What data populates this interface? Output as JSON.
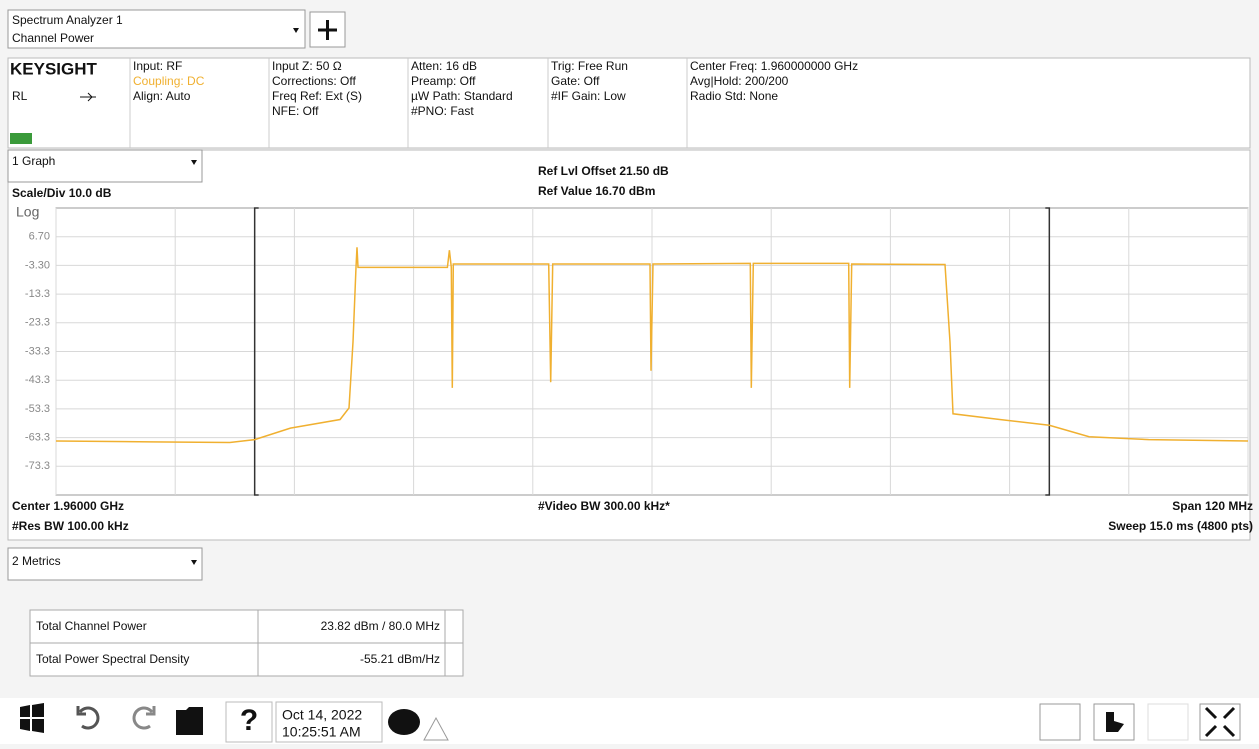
{
  "header": {
    "title": "Spectrum Analyzer 1",
    "subtitle": "Channel Power"
  },
  "status": {
    "brand": "KEYSIGHT",
    "rl": "RL",
    "columns": [
      [
        "Input: RF",
        "Coupling: DC",
        "Align: Auto"
      ],
      [
        "Input Z: 50 Ω",
        "Corrections: Off",
        "Freq Ref: Ext (S)",
        "NFE: Off"
      ],
      [
        "Atten: 16 dB",
        "Preamp: Off",
        "µW Path: Standard",
        "#PNO: Fast"
      ],
      [
        "Trig: Free Run",
        "Gate: Off",
        "#IF Gain: Low"
      ],
      [
        "Center Freq: 1.960000000 GHz",
        "Avg|Hold: 200/200",
        "Radio Std: None"
      ]
    ]
  },
  "graph": {
    "selector": "1 Graph",
    "scale": "Scale/Div 10.0 dB",
    "scale_type": "Log",
    "ref_offset": "Ref Lvl Offset 21.50 dB",
    "ref_value": "Ref Value 16.70 dBm",
    "center": "Center 1.96000 GHz",
    "res_bw": "#Res BW 100.00 kHz",
    "video_bw": "#Video BW 300.00 kHz*",
    "span": "Span 120 MHz",
    "sweep": "Sweep 15.0 ms (4800 pts)"
  },
  "chart_data": {
    "type": "line",
    "xlim": [
      1.9,
      2.02
    ],
    "ylim": [
      16.7,
      -83.3
    ],
    "xticks": [
      1.9,
      1.912,
      1.924,
      1.936,
      1.948,
      1.96,
      1.972,
      1.984,
      1.996,
      2.008,
      2.02
    ],
    "yticks": [
      {
        "value": 6.7,
        "label": "6.70"
      },
      {
        "value": -3.3,
        "label": "-3.30"
      },
      -13.3,
      -23.3,
      -33.3,
      -43.3,
      -53.3,
      -63.3,
      -73.3
    ],
    "channel_edges": [
      1.92,
      2.0
    ],
    "grid": true,
    "x": [
      1.9,
      1.9095,
      1.9175,
      1.92,
      1.9236,
      1.9286,
      1.9295,
      1.9299,
      1.9302,
      1.9303,
      1.9304,
      1.9394,
      1.9396,
      1.9398,
      1.9399,
      1.94,
      1.9496,
      1.9498,
      1.95,
      1.9598,
      1.9599,
      1.9601,
      1.9699,
      1.97,
      1.9702,
      1.9798,
      1.9799,
      1.9801,
      1.9895,
      1.99,
      1.9903,
      1.995,
      2.0,
      2.004,
      2.01,
      2.02
    ],
    "series": [
      {
        "color": "#f0b030",
        "values": [
          -64.5,
          -64.8,
          -65.0,
          -64.0,
          -60.0,
          -57.0,
          -53.0,
          -30.0,
          -4.0,
          3.0,
          -4.0,
          -4.0,
          2.0,
          -4.0,
          -46.0,
          -2.8,
          -2.8,
          -44.0,
          -2.8,
          -2.8,
          -40.0,
          -2.8,
          -2.6,
          -46.0,
          -2.6,
          -2.6,
          -46.0,
          -2.8,
          -3.0,
          -30.0,
          -55.0,
          -57.0,
          -59.0,
          -63.0,
          -64.0,
          -64.5
        ]
      }
    ]
  },
  "metrics": {
    "selector": "2 Metrics",
    "rows": [
      [
        "Total Channel Power",
        "23.82 dBm / 80.0 MHz"
      ],
      [
        "Total Power Spectral Density",
        "-55.21 dBm/Hz"
      ]
    ]
  },
  "taskbar": {
    "help": "?",
    "date": "Oct 14, 2022",
    "time": "10:25:51 AM"
  }
}
